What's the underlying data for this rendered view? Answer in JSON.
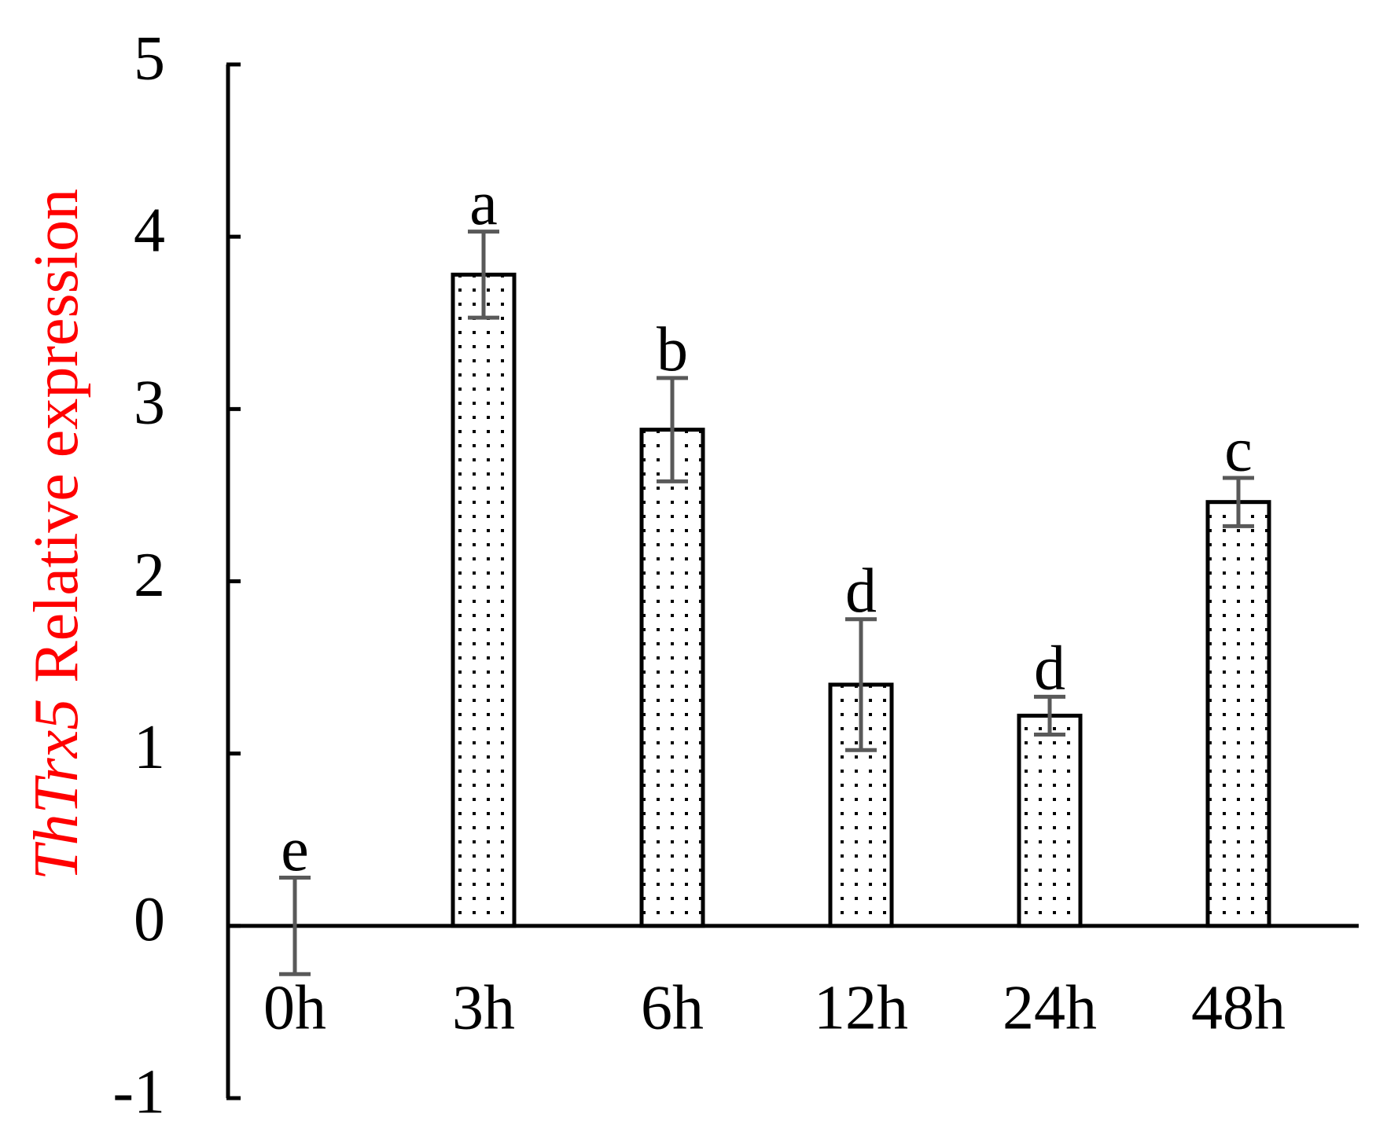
{
  "chart_data": {
    "type": "bar",
    "ylabel_gene": "ThTrx5",
    "ylabel": "Relative expression",
    "ylabel_color": "#ff0000",
    "categories": [
      "0h",
      "3h",
      "6h",
      "12h",
      "24h",
      "48h"
    ],
    "values": [
      0,
      3.78,
      2.88,
      1.4,
      1.22,
      2.46
    ],
    "errors": [
      0.28,
      0.25,
      0.3,
      0.38,
      0.11,
      0.14
    ],
    "letters": [
      "e",
      "a",
      "b",
      "d",
      "d",
      "c"
    ],
    "color": "#ffffff",
    "edge_color": "#000000",
    "error_color": "#595959",
    "ylim": [
      -1,
      5
    ],
    "yticks": [
      -1,
      0,
      1,
      2,
      3,
      4,
      5
    ],
    "grid": false
  }
}
